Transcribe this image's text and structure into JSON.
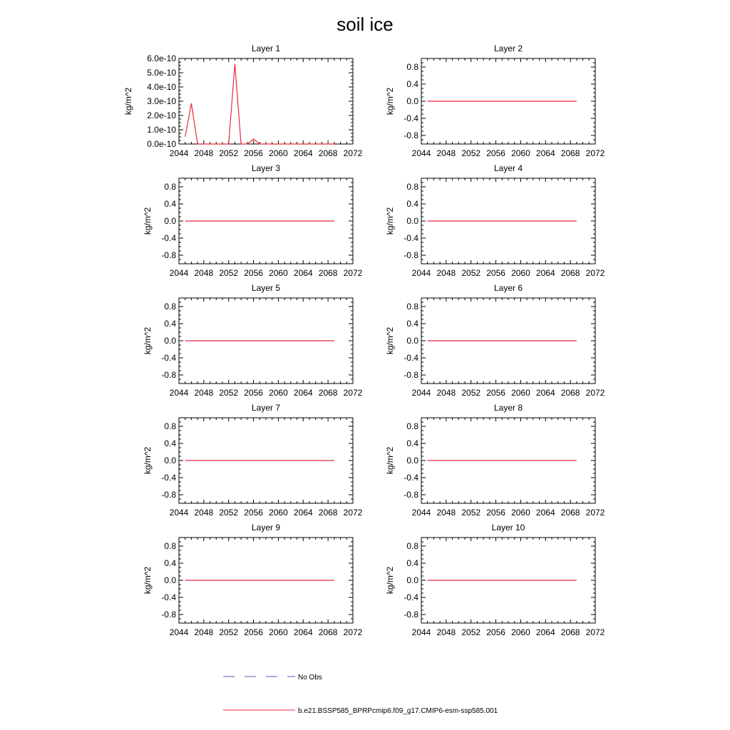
{
  "title": "soil ice",
  "chart_data": [
    {
      "type": "line",
      "title": "Layer 1",
      "xlabel": "",
      "ylabel": "kg/m^2",
      "xlim": [
        2044,
        2072
      ],
      "ylim": [
        0,
        6e-10
      ],
      "xticks": [
        "2044",
        "2048",
        "2052",
        "2056",
        "2060",
        "2064",
        "2068",
        "2072"
      ],
      "yticks": [
        "0.0e-10",
        "1.0e-10",
        "2.0e-10",
        "3.0e-10",
        "4.0e-10",
        "5.0e-10",
        "6.0e-10"
      ],
      "ytick_values": [
        0,
        1e-10,
        2e-10,
        3e-10,
        4e-10,
        5e-10,
        6e-10
      ],
      "series": [
        {
          "name": "b.e21.BSSP585_BPRPcmip6.f09_g17.CMIP6-esm-ssp585.001",
          "color": "#e8283a",
          "x": [
            2045,
            2046,
            2047,
            2048,
            2049,
            2050,
            2051,
            2052,
            2053,
            2054,
            2055,
            2056,
            2057,
            2058,
            2059,
            2060,
            2061,
            2062,
            2063,
            2064,
            2065,
            2066,
            2067,
            2068,
            2069
          ],
          "y": [
            5e-11,
            2.85e-10,
            0,
            0,
            0,
            0,
            0,
            0,
            5.6e-10,
            0,
            0,
            3.5e-11,
            0,
            0,
            0,
            0,
            0,
            0,
            0,
            0,
            0,
            0,
            0,
            0,
            0
          ]
        }
      ]
    },
    {
      "type": "line",
      "title": "Layer 2",
      "xlabel": "",
      "ylabel": "kg/m^2",
      "xlim": [
        2044,
        2072
      ],
      "ylim": [
        -1,
        1
      ],
      "xticks": [
        "2044",
        "2048",
        "2052",
        "2056",
        "2060",
        "2064",
        "2068",
        "2072"
      ],
      "yticks": [
        "-0.8",
        "-0.4",
        "0.0",
        "0.4",
        "0.8"
      ],
      "ytick_values": [
        -0.8,
        -0.4,
        0,
        0.4,
        0.8
      ],
      "series": [
        {
          "name": "b.e21.BSSP585_BPRPcmip6.f09_g17.CMIP6-esm-ssp585.001",
          "color": "#e8283a",
          "x": [
            2045,
            2069
          ],
          "y": [
            0,
            0
          ]
        }
      ]
    },
    {
      "type": "line",
      "title": "Layer 3",
      "xlabel": "",
      "ylabel": "kg/m^2",
      "xlim": [
        2044,
        2072
      ],
      "ylim": [
        -1,
        1
      ],
      "xticks": [
        "2044",
        "2048",
        "2052",
        "2056",
        "2060",
        "2064",
        "2068",
        "2072"
      ],
      "yticks": [
        "-0.8",
        "-0.4",
        "0.0",
        "0.4",
        "0.8"
      ],
      "ytick_values": [
        -0.8,
        -0.4,
        0,
        0.4,
        0.8
      ],
      "series": [
        {
          "name": "b.e21.BSSP585_BPRPcmip6.f09_g17.CMIP6-esm-ssp585.001",
          "color": "#e8283a",
          "x": [
            2045,
            2069
          ],
          "y": [
            0,
            0
          ]
        }
      ]
    },
    {
      "type": "line",
      "title": "Layer 4",
      "xlabel": "",
      "ylabel": "kg/m^2",
      "xlim": [
        2044,
        2072
      ],
      "ylim": [
        -1,
        1
      ],
      "xticks": [
        "2044",
        "2048",
        "2052",
        "2056",
        "2060",
        "2064",
        "2068",
        "2072"
      ],
      "yticks": [
        "-0.8",
        "-0.4",
        "0.0",
        "0.4",
        "0.8"
      ],
      "ytick_values": [
        -0.8,
        -0.4,
        0,
        0.4,
        0.8
      ],
      "series": [
        {
          "name": "b.e21.BSSP585_BPRPcmip6.f09_g17.CMIP6-esm-ssp585.001",
          "color": "#e8283a",
          "x": [
            2045,
            2069
          ],
          "y": [
            0,
            0
          ]
        }
      ]
    },
    {
      "type": "line",
      "title": "Layer 5",
      "xlabel": "",
      "ylabel": "kg/m^2",
      "xlim": [
        2044,
        2072
      ],
      "ylim": [
        -1,
        1
      ],
      "xticks": [
        "2044",
        "2048",
        "2052",
        "2056",
        "2060",
        "2064",
        "2068",
        "2072"
      ],
      "yticks": [
        "-0.8",
        "-0.4",
        "0.0",
        "0.4",
        "0.8"
      ],
      "ytick_values": [
        -0.8,
        -0.4,
        0,
        0.4,
        0.8
      ],
      "series": [
        {
          "name": "b.e21.BSSP585_BPRPcmip6.f09_g17.CMIP6-esm-ssp585.001",
          "color": "#e8283a",
          "x": [
            2045,
            2069
          ],
          "y": [
            0,
            0
          ]
        }
      ]
    },
    {
      "type": "line",
      "title": "Layer 6",
      "xlabel": "",
      "ylabel": "kg/m^2",
      "xlim": [
        2044,
        2072
      ],
      "ylim": [
        -1,
        1
      ],
      "xticks": [
        "2044",
        "2048",
        "2052",
        "2056",
        "2060",
        "2064",
        "2068",
        "2072"
      ],
      "yticks": [
        "-0.8",
        "-0.4",
        "0.0",
        "0.4",
        "0.8"
      ],
      "ytick_values": [
        -0.8,
        -0.4,
        0,
        0.4,
        0.8
      ],
      "series": [
        {
          "name": "b.e21.BSSP585_BPRPcmip6.f09_g17.CMIP6-esm-ssp585.001",
          "color": "#e8283a",
          "x": [
            2045,
            2069
          ],
          "y": [
            0,
            0
          ]
        }
      ]
    },
    {
      "type": "line",
      "title": "Layer 7",
      "xlabel": "",
      "ylabel": "kg/m^2",
      "xlim": [
        2044,
        2072
      ],
      "ylim": [
        -1,
        1
      ],
      "xticks": [
        "2044",
        "2048",
        "2052",
        "2056",
        "2060",
        "2064",
        "2068",
        "2072"
      ],
      "yticks": [
        "-0.8",
        "-0.4",
        "0.0",
        "0.4",
        "0.8"
      ],
      "ytick_values": [
        -0.8,
        -0.4,
        0,
        0.4,
        0.8
      ],
      "series": [
        {
          "name": "b.e21.BSSP585_BPRPcmip6.f09_g17.CMIP6-esm-ssp585.001",
          "color": "#e8283a",
          "x": [
            2045,
            2069
          ],
          "y": [
            0,
            0
          ]
        }
      ]
    },
    {
      "type": "line",
      "title": "Layer 8",
      "xlabel": "",
      "ylabel": "kg/m^2",
      "xlim": [
        2044,
        2072
      ],
      "ylim": [
        -1,
        1
      ],
      "xticks": [
        "2044",
        "2048",
        "2052",
        "2056",
        "2060",
        "2064",
        "2068",
        "2072"
      ],
      "yticks": [
        "-0.8",
        "-0.4",
        "0.0",
        "0.4",
        "0.8"
      ],
      "ytick_values": [
        -0.8,
        -0.4,
        0,
        0.4,
        0.8
      ],
      "series": [
        {
          "name": "b.e21.BSSP585_BPRPcmip6.f09_g17.CMIP6-esm-ssp585.001",
          "color": "#e8283a",
          "x": [
            2045,
            2069
          ],
          "y": [
            0,
            0
          ]
        }
      ]
    },
    {
      "type": "line",
      "title": "Layer 9",
      "xlabel": "",
      "ylabel": "kg/m^2",
      "xlim": [
        2044,
        2072
      ],
      "ylim": [
        -1,
        1
      ],
      "xticks": [
        "2044",
        "2048",
        "2052",
        "2056",
        "2060",
        "2064",
        "2068",
        "2072"
      ],
      "yticks": [
        "-0.8",
        "-0.4",
        "0.0",
        "0.4",
        "0.8"
      ],
      "ytick_values": [
        -0.8,
        -0.4,
        0,
        0.4,
        0.8
      ],
      "series": [
        {
          "name": "b.e21.BSSP585_BPRPcmip6.f09_g17.CMIP6-esm-ssp585.001",
          "color": "#e8283a",
          "x": [
            2045,
            2069
          ],
          "y": [
            0,
            0
          ]
        }
      ]
    },
    {
      "type": "line",
      "title": "Layer 10",
      "xlabel": "",
      "ylabel": "kg/m^2",
      "xlim": [
        2044,
        2072
      ],
      "ylim": [
        -1,
        1
      ],
      "xticks": [
        "2044",
        "2048",
        "2052",
        "2056",
        "2060",
        "2064",
        "2068",
        "2072"
      ],
      "yticks": [
        "-0.8",
        "-0.4",
        "0.0",
        "0.4",
        "0.8"
      ],
      "ytick_values": [
        -0.8,
        -0.4,
        0,
        0.4,
        0.8
      ],
      "series": [
        {
          "name": "b.e21.BSSP585_BPRPcmip6.f09_g17.CMIP6-esm-ssp585.001",
          "color": "#e8283a",
          "x": [
            2045,
            2069
          ],
          "y": [
            0,
            0
          ]
        }
      ]
    }
  ],
  "legend": {
    "placement": "bottom-center",
    "entries": [
      {
        "label": "No Obs",
        "color": "#5a5ab4",
        "style": "dashed"
      },
      {
        "label": "b.e21.BSSP585_BPRPcmip6.f09_g17.CMIP6-esm-ssp585.001",
        "color": "#e8283a",
        "style": "solid"
      }
    ]
  }
}
